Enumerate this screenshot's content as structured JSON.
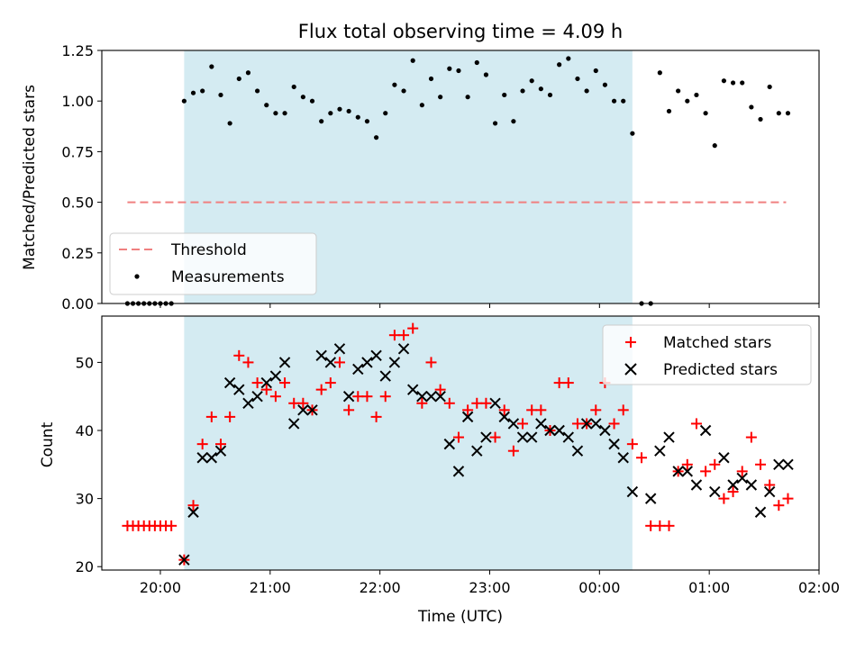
{
  "chart_data": [
    {
      "type": "scatter",
      "title": "Flux total observing time = 4.09 h",
      "ylabel": "Matched/Predicted stars",
      "xlabel": "",
      "xlim": [
        "19:28",
        "02:00"
      ],
      "ylim": [
        0,
        1.25
      ],
      "yticks": [
        "0.00",
        "0.25",
        "0.50",
        "0.75",
        "1.00",
        "1.25"
      ],
      "shaded_region": [
        "20:13",
        "00:18"
      ],
      "threshold": {
        "name": "Threshold",
        "value": 0.5,
        "x": [
          "19:42",
          "01:42"
        ],
        "color": "#f08080"
      },
      "series": [
        {
          "name": "Measurements",
          "color": "#000000",
          "x": [
            "19:42",
            "19:45",
            "19:48",
            "19:51",
            "19:54",
            "19:57",
            "20:00",
            "20:03",
            "20:06",
            "20:13",
            "20:18",
            "20:23",
            "20:28",
            "20:33",
            "20:38",
            "20:43",
            "20:48",
            "20:53",
            "20:58",
            "21:03",
            "21:08",
            "21:13",
            "21:18",
            "21:23",
            "21:28",
            "21:33",
            "21:38",
            "21:43",
            "21:48",
            "21:53",
            "21:58",
            "22:03",
            "22:08",
            "22:13",
            "22:18",
            "22:23",
            "22:28",
            "22:33",
            "22:38",
            "22:43",
            "22:48",
            "22:53",
            "22:58",
            "23:03",
            "23:08",
            "23:13",
            "23:18",
            "23:23",
            "23:28",
            "23:33",
            "23:38",
            "23:43",
            "23:48",
            "23:53",
            "23:58",
            "00:03",
            "00:08",
            "00:13",
            "00:18",
            "00:23",
            "00:28",
            "00:33",
            "00:38",
            "00:43",
            "00:48",
            "00:53",
            "00:58",
            "01:03",
            "01:08",
            "01:13",
            "01:18",
            "01:23",
            "01:28",
            "01:33",
            "01:38",
            "01:43"
          ],
          "y": [
            0,
            0,
            0,
            0,
            0,
            0,
            0,
            0,
            0,
            1.0,
            1.04,
            1.05,
            1.17,
            1.03,
            0.89,
            1.11,
            1.14,
            1.05,
            0.98,
            0.94,
            0.94,
            1.07,
            1.02,
            1.0,
            0.9,
            0.94,
            0.96,
            0.95,
            0.92,
            0.9,
            0.82,
            0.94,
            1.08,
            1.05,
            1.2,
            0.98,
            1.11,
            1.02,
            1.16,
            1.15,
            1.02,
            1.19,
            1.13,
            0.89,
            1.03,
            0.9,
            1.05,
            1.1,
            1.06,
            1.03,
            1.18,
            1.21,
            1.11,
            1.05,
            1.15,
            1.08,
            1.0,
            1.0,
            0.84,
            0,
            0,
            1.14,
            0.95,
            1.05,
            1.0,
            1.03,
            0.94,
            0.78,
            1.1,
            1.09,
            1.09,
            0.97,
            0.91,
            1.07,
            0.94,
            0.94
          ]
        }
      ]
    },
    {
      "type": "scatter",
      "title": "",
      "xlabel": "Time (UTC)",
      "ylabel": "Count",
      "xlim": [
        "19:28",
        "02:00"
      ],
      "ylim": [
        19.5,
        56.8
      ],
      "yticks": [
        "20",
        "30",
        "40",
        "50"
      ],
      "xticks": [
        "20:00",
        "21:00",
        "22:00",
        "23:00",
        "00:00",
        "01:00",
        "02:00"
      ],
      "shaded_region": [
        "20:13",
        "00:18"
      ],
      "series": [
        {
          "name": "Matched stars",
          "color": "#ff0000",
          "marker": "+",
          "x": [
            "19:42",
            "19:45",
            "19:48",
            "19:51",
            "19:54",
            "19:57",
            "20:00",
            "20:03",
            "20:06",
            "20:13",
            "20:18",
            "20:23",
            "20:28",
            "20:33",
            "20:38",
            "20:43",
            "20:48",
            "20:53",
            "20:58",
            "21:03",
            "21:08",
            "21:13",
            "21:18",
            "21:23",
            "21:28",
            "21:33",
            "21:38",
            "21:43",
            "21:48",
            "21:53",
            "21:58",
            "22:03",
            "22:08",
            "22:13",
            "22:18",
            "22:23",
            "22:28",
            "22:33",
            "22:38",
            "22:43",
            "22:48",
            "22:53",
            "22:58",
            "23:03",
            "23:08",
            "23:13",
            "23:18",
            "23:23",
            "23:28",
            "23:33",
            "23:38",
            "23:43",
            "23:48",
            "23:53",
            "23:58",
            "00:03",
            "00:08",
            "00:13",
            "00:18",
            "00:23",
            "00:28",
            "00:33",
            "00:38",
            "00:43",
            "00:48",
            "00:53",
            "00:58",
            "01:03",
            "01:08",
            "01:13",
            "01:18",
            "01:23",
            "01:28",
            "01:33",
            "01:38",
            "01:43"
          ],
          "y": [
            26,
            26,
            26,
            26,
            26,
            26,
            26,
            26,
            26,
            21,
            29,
            38,
            42,
            38,
            42,
            51,
            50,
            47,
            46,
            45,
            47,
            44,
            44,
            43,
            46,
            47,
            50,
            43,
            45,
            45,
            42,
            45,
            54,
            54,
            55,
            44,
            50,
            46,
            44,
            39,
            43,
            44,
            44,
            39,
            43,
            37,
            41,
            43,
            43,
            40,
            47,
            47,
            41,
            41,
            43,
            47,
            41,
            43,
            38,
            36,
            26,
            26,
            26,
            34,
            35,
            41,
            34,
            35,
            30,
            31,
            34,
            39,
            35,
            32,
            29,
            30
          ]
        },
        {
          "name": "Predicted stars",
          "color": "#000000",
          "marker": "x",
          "x": [
            "20:13",
            "20:18",
            "20:23",
            "20:28",
            "20:33",
            "20:38",
            "20:43",
            "20:48",
            "20:53",
            "20:58",
            "21:03",
            "21:08",
            "21:13",
            "21:18",
            "21:23",
            "21:28",
            "21:33",
            "21:38",
            "21:43",
            "21:48",
            "21:53",
            "21:58",
            "22:03",
            "22:08",
            "22:13",
            "22:18",
            "22:23",
            "22:28",
            "22:33",
            "22:38",
            "22:43",
            "22:48",
            "22:53",
            "22:58",
            "23:03",
            "23:08",
            "23:13",
            "23:18",
            "23:23",
            "23:28",
            "23:33",
            "23:38",
            "23:43",
            "23:48",
            "23:53",
            "23:58",
            "00:03",
            "00:08",
            "00:13",
            "00:18",
            "00:28",
            "00:33",
            "00:38",
            "00:43",
            "00:48",
            "00:53",
            "00:58",
            "01:03",
            "01:08",
            "01:13",
            "01:18",
            "01:23",
            "01:28",
            "01:33",
            "01:38",
            "01:43"
          ],
          "y": [
            21,
            28,
            36,
            36,
            37,
            47,
            46,
            44,
            45,
            47,
            48,
            50,
            41,
            43,
            43,
            51,
            50,
            52,
            45,
            49,
            50,
            51,
            48,
            50,
            52,
            46,
            45,
            45,
            45,
            38,
            34,
            42,
            37,
            39,
            44,
            42,
            41,
            39,
            39,
            41,
            40,
            40,
            39,
            37,
            41,
            41,
            40,
            38,
            36,
            31,
            30,
            37,
            39,
            34,
            34,
            32,
            40,
            31,
            36,
            32,
            33,
            32,
            28,
            31,
            35,
            35
          ]
        }
      ],
      "legend": "top-right"
    }
  ]
}
